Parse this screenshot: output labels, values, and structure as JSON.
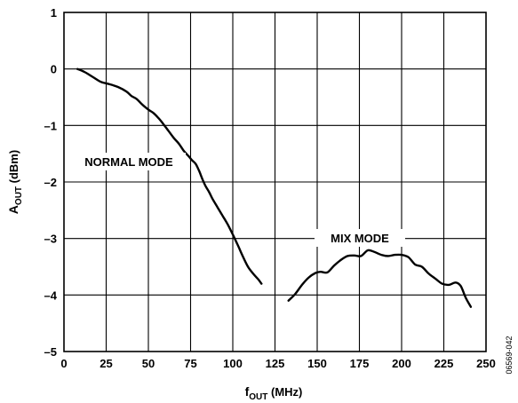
{
  "chart_data": {
    "type": "line",
    "xlabel": {
      "main": "f",
      "sub": "OUT",
      "unit": " (MHz)"
    },
    "ylabel": {
      "main": "A",
      "sub": "OUT",
      "unit": " (dBm)"
    },
    "xlim": [
      0,
      250
    ],
    "ylim": [
      -5,
      1
    ],
    "x_ticks": [
      0,
      25,
      50,
      75,
      100,
      125,
      150,
      175,
      200,
      225,
      250
    ],
    "y_ticks": [
      1,
      0,
      -1,
      -2,
      -3,
      -4,
      -5
    ],
    "x_tick_labels": [
      "0",
      "25",
      "50",
      "75",
      "100",
      "125",
      "150",
      "175",
      "200",
      "225",
      "250"
    ],
    "y_tick_labels": [
      "1",
      "0",
      "–1",
      "–2",
      "–3",
      "–4",
      "–5"
    ],
    "grid": true,
    "series": [
      {
        "name": "NORMAL MODE",
        "x": [
          8,
          12,
          17,
          22,
          27,
          32,
          37,
          40,
          43,
          46,
          50,
          53,
          56,
          59,
          62,
          65,
          68,
          71,
          74,
          76,
          78,
          80,
          82,
          84,
          86,
          88,
          91,
          94,
          97,
          100,
          103,
          106,
          109,
          112,
          115,
          117
        ],
        "y": [
          0.0,
          -0.05,
          -0.14,
          -0.23,
          -0.27,
          -0.32,
          -0.4,
          -0.48,
          -0.53,
          -0.62,
          -0.72,
          -0.78,
          -0.87,
          -0.98,
          -1.1,
          -1.22,
          -1.32,
          -1.45,
          -1.55,
          -1.62,
          -1.68,
          -1.8,
          -1.95,
          -2.08,
          -2.18,
          -2.3,
          -2.45,
          -2.6,
          -2.75,
          -2.93,
          -3.12,
          -3.32,
          -3.5,
          -3.62,
          -3.72,
          -3.8
        ]
      },
      {
        "name": "MIX MODE",
        "x": [
          133,
          137,
          141,
          145,
          149,
          152,
          156,
          160,
          164,
          168,
          172,
          176,
          180,
          184,
          188,
          192,
          196,
          200,
          204,
          208,
          212,
          216,
          220,
          224,
          228,
          232,
          235,
          238,
          241
        ],
        "y": [
          -4.1,
          -3.98,
          -3.82,
          -3.69,
          -3.61,
          -3.59,
          -3.6,
          -3.48,
          -3.38,
          -3.31,
          -3.3,
          -3.31,
          -3.21,
          -3.24,
          -3.29,
          -3.31,
          -3.29,
          -3.29,
          -3.33,
          -3.46,
          -3.5,
          -3.62,
          -3.71,
          -3.8,
          -3.82,
          -3.78,
          -3.84,
          -4.05,
          -4.21
        ]
      }
    ],
    "annotations": [
      {
        "text": "NORMAL MODE",
        "series": 0
      },
      {
        "text": "MIX MODE",
        "series": 1
      }
    ]
  },
  "figure_id": "06569-042"
}
